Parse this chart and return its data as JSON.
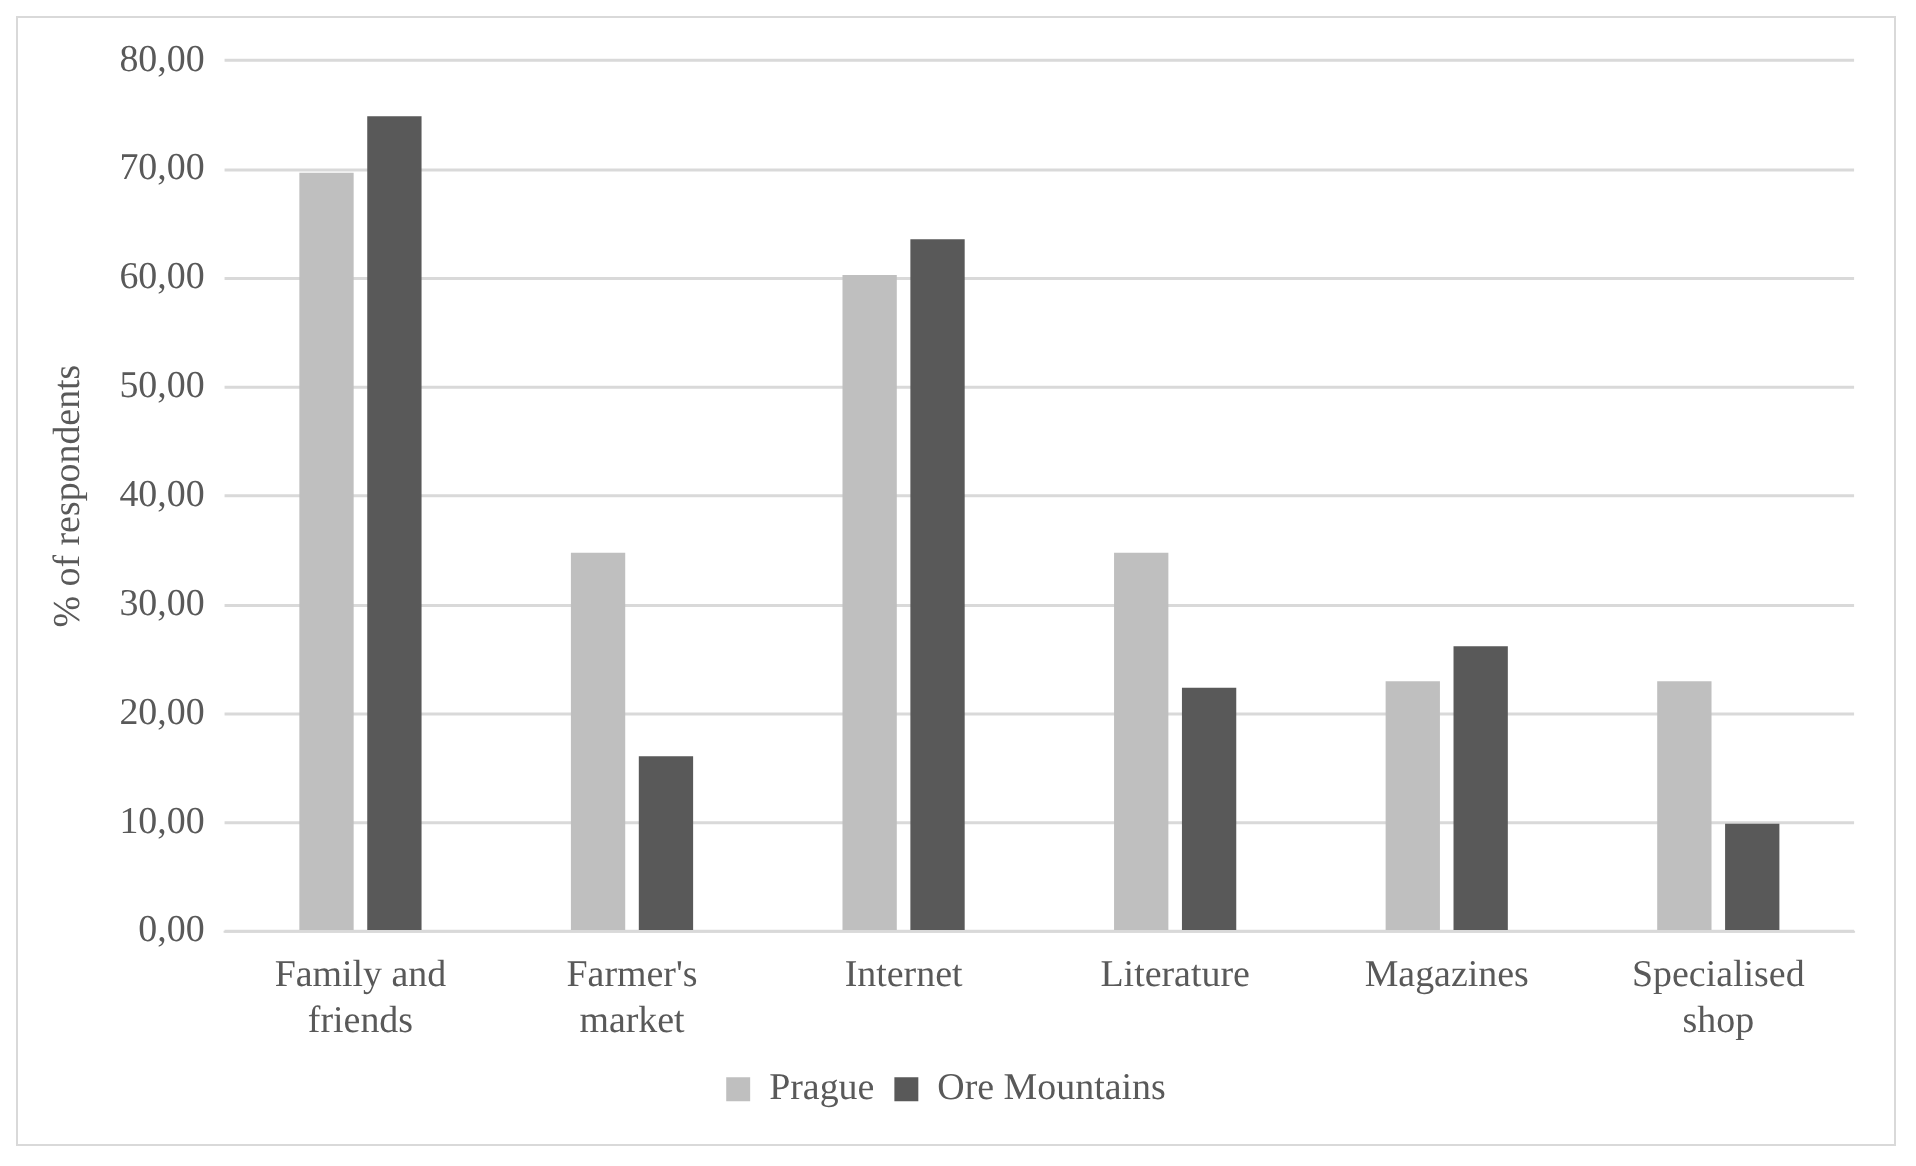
{
  "chart_data": {
    "type": "bar",
    "ylabel": "% of respondents",
    "categories": [
      "Family and friends",
      "Farmer's market",
      "Internet",
      "Literature",
      "Magazines",
      "Specialised shop"
    ],
    "series": [
      {
        "name": "Prague",
        "color": "#bfbfbf",
        "values": [
          69.7,
          34.8,
          60.3,
          34.8,
          23.0,
          23.0
        ]
      },
      {
        "name": "Ore Mountains",
        "color": "#595959",
        "values": [
          74.9,
          16.1,
          63.6,
          22.4,
          26.2,
          9.9
        ]
      }
    ],
    "ylim": [
      0,
      80
    ],
    "yticks": [
      {
        "value": 0,
        "label": "0,00"
      },
      {
        "value": 10,
        "label": "10,00"
      },
      {
        "value": 20,
        "label": "20,00"
      },
      {
        "value": 30,
        "label": "30,00"
      },
      {
        "value": 40,
        "label": "40,00"
      },
      {
        "value": 50,
        "label": "50,00"
      },
      {
        "value": 60,
        "label": "60,00"
      },
      {
        "value": 70,
        "label": "70,00"
      },
      {
        "value": 80,
        "label": "80,00"
      }
    ],
    "grid": "y",
    "legend": "bottom"
  }
}
